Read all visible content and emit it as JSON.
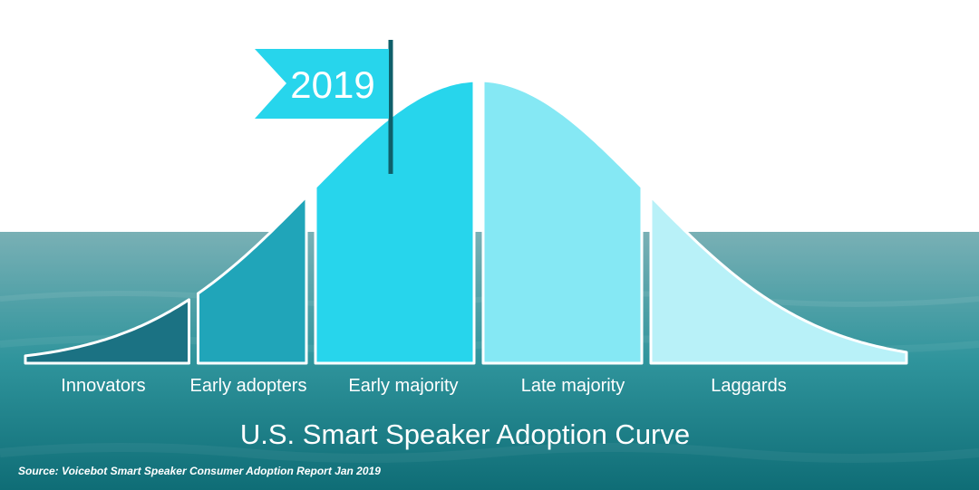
{
  "chart_data": {
    "type": "area",
    "title": "U.S. Smart Speaker Adoption Curve",
    "source": "Source: Voicebot Smart Speaker Consumer Adoption Report Jan 2019",
    "marker": {
      "label": "2019"
    },
    "segments": [
      {
        "name": "Innovators",
        "color": "#1b7283"
      },
      {
        "name": "Early adopters",
        "color": "#20a5b9"
      },
      {
        "name": "Early majority",
        "color": "#27d5ec"
      },
      {
        "name": "Late majority",
        "color": "#85e8f4"
      },
      {
        "name": "Laggards",
        "color": "#b8f1f8"
      }
    ]
  },
  "colors": {
    "sea_top": "#79b0b5",
    "sea_mid": "#2f949c",
    "sea_bottom": "#0f6d76",
    "flag": "#27d5ec",
    "pole": "#0f5f6a"
  }
}
